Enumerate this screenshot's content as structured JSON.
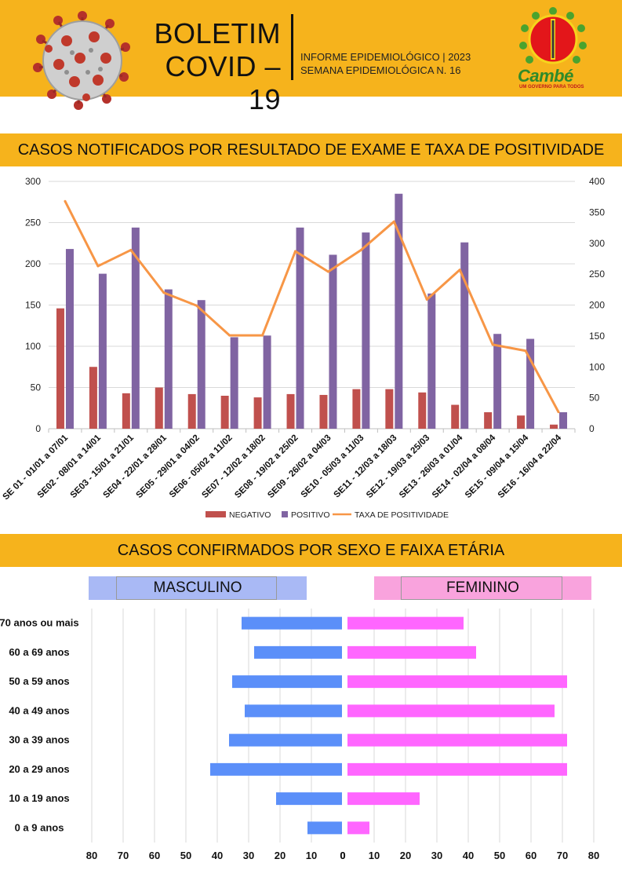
{
  "header": {
    "title_line1": "BOLETIM",
    "title_line2": "COVID – 19",
    "informe_line1": "INFORME EPIDEMIOLÓGICO | 2023",
    "informe_line2": "SEMANA EPIDEMIOLÓGICA  N. 16",
    "logo_name": "Cambé",
    "logo_tagline": "UM GOVERNO PARA TODOS",
    "accent_color": "#f6b31c"
  },
  "section1": {
    "title": "CASOS NOTIFICADOS POR RESULTADO DE EXAME E TAXA DE POSITIVIDADE"
  },
  "section2": {
    "title": "CASOS CONFIRMADOS POR SEXO E FAIXA ETÁRIA",
    "male_label": "MASCULINO",
    "female_label": "FEMININO"
  },
  "chart_data": [
    {
      "type": "bar",
      "categories": [
        "SE 01 - 01/01 a 07/01",
        "SE02 - 08/01 a 14/01",
        "SE03 - 15/01 a 21/01",
        "SE04 - 22/01 a 28/01",
        "SE05 - 29/01 a 04/02",
        "SE06 - 05/02 a 11/02",
        "SE07 - 12/02 a 18/02",
        "SE08 - 19/02 a 25/02",
        "SE09 - 26/02 a 04/03",
        "SE10 - 05/03 a 11/03",
        "SE11 - 12/03 a 18/03",
        "SE12 - 19/03 a 25/03",
        "SE13 - 26/03 a 01/04",
        "SE14 - 02/04 a 08/04",
        "SE15 - 09/04 a 15/04",
        "SE16 - 16/04 a 22/04"
      ],
      "series": [
        {
          "name": "NEGATIVO",
          "type": "bar",
          "axis": "left",
          "color": "#c0504d",
          "values": [
            146,
            75,
            43,
            50,
            42,
            40,
            38,
            42,
            41,
            48,
            48,
            44,
            29,
            20,
            16,
            5
          ]
        },
        {
          "name": "POSITIVO",
          "type": "bar",
          "axis": "left",
          "color": "#8064a2",
          "values": [
            218,
            188,
            244,
            169,
            156,
            111,
            113,
            244,
            211,
            238,
            285,
            164,
            226,
            115,
            109,
            20
          ]
        },
        {
          "name": "TAXA DE POSITIVIDADE",
          "type": "line",
          "axis": "right",
          "color": "#f79646",
          "values": [
            368,
            263,
            289,
            220,
            199,
            151,
            151,
            287,
            254,
            289,
            335,
            209,
            257,
            136,
            126,
            27
          ]
        }
      ],
      "ylim_left": [
        0,
        300
      ],
      "yticks_left": [
        0,
        50,
        100,
        150,
        200,
        250,
        300
      ],
      "ylim_right": [
        0,
        400
      ],
      "yticks_right": [
        0,
        50,
        100,
        150,
        200,
        250,
        300,
        350,
        400
      ],
      "legend": "bottom",
      "grid": true
    },
    {
      "type": "bar",
      "orientation": "horizontal",
      "categories": [
        "70 anos ou mais",
        "60 a 69 anos",
        "50 a 59 anos",
        "40 a 49 anos",
        "30 a 39 anos",
        "20 a 29 anos",
        "10 a 19 anos",
        "0 a 9 anos"
      ],
      "series": [
        {
          "name": "MASCULINO",
          "color": "#5b8ff9",
          "values": [
            32,
            28,
            35,
            31,
            36,
            42,
            21,
            11
          ]
        },
        {
          "name": "FEMININO",
          "color": "#ff66ff",
          "values": [
            37,
            41,
            70,
            66,
            70,
            70,
            23,
            7
          ]
        }
      ],
      "xlim": [
        0,
        80
      ],
      "xticks": [
        0,
        10,
        20,
        30,
        40,
        50,
        60,
        70,
        80
      ],
      "grid": true
    }
  ]
}
